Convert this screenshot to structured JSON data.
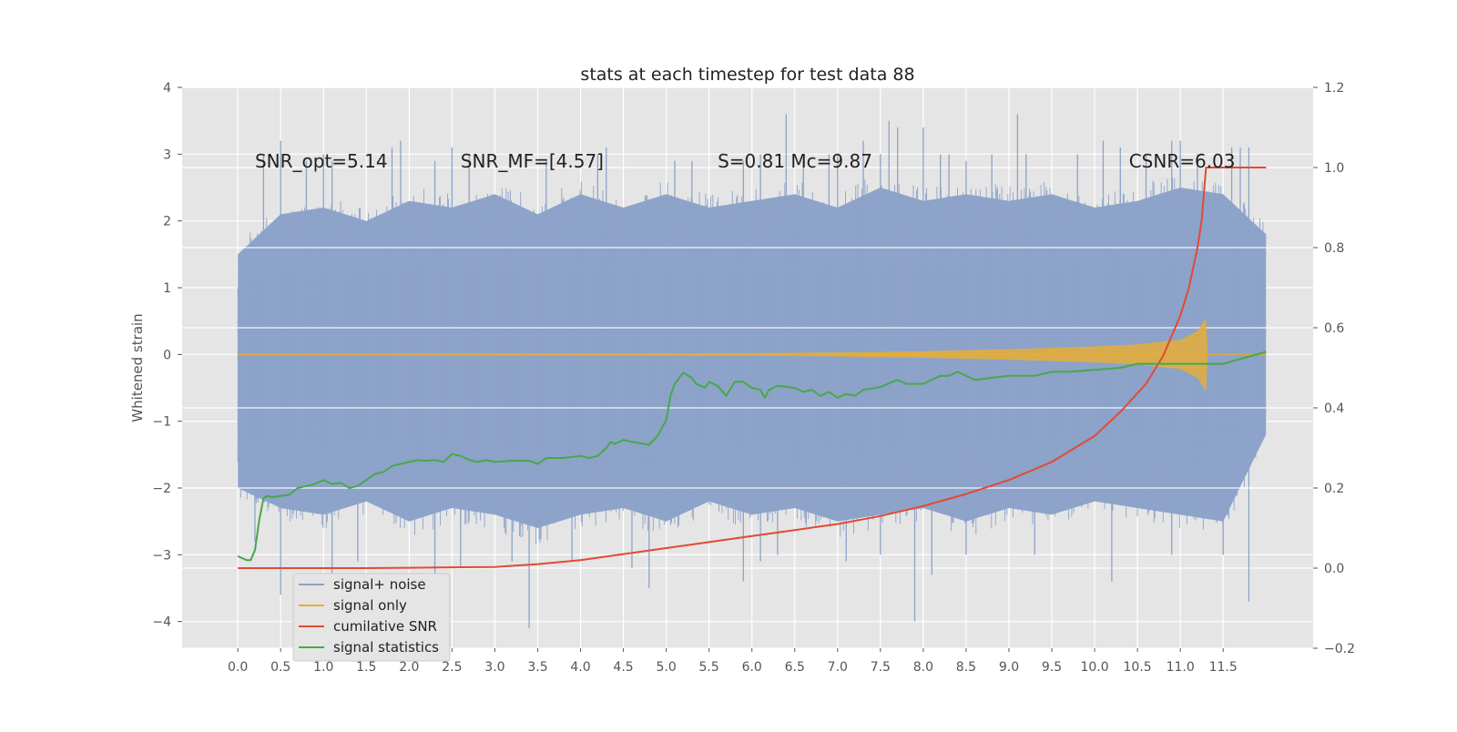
{
  "chart_data": {
    "type": "line",
    "title": "stats at each timestep for test data 88",
    "xlabel": "",
    "ylabel": "Whitened strain",
    "xlim": [
      -0.65,
      12.55
    ],
    "ylim": [
      -4.4,
      4.0
    ],
    "y2lim": [
      -0.2,
      1.2
    ],
    "x_ticks": [
      0.0,
      0.5,
      1.0,
      1.5,
      2.0,
      2.5,
      3.0,
      3.5,
      4.0,
      4.5,
      5.0,
      5.5,
      6.0,
      6.5,
      7.0,
      7.5,
      8.0,
      8.5,
      9.0,
      9.5,
      10.0,
      10.5,
      11.0,
      11.5
    ],
    "x_tick_labels": [
      "0.0",
      "0.5",
      "1.0",
      "1.5",
      "2.0",
      "2.5",
      "3.0",
      "3.5",
      "4.0",
      "4.5",
      "5.0",
      "5.5",
      "6.0",
      "6.5",
      "7.0",
      "7.5",
      "8.0",
      "8.5",
      "9.0",
      "9.5",
      "10.0",
      "10.5",
      "11.0",
      "11.5"
    ],
    "y_ticks": [
      -4,
      -3,
      -2,
      -1,
      0,
      1,
      2,
      3,
      4
    ],
    "y_tick_labels": [
      "−4",
      "−3",
      "−2",
      "−1",
      "0",
      "1",
      "2",
      "3",
      "4"
    ],
    "y2_ticks": [
      -0.2,
      0.0,
      0.2,
      0.4,
      0.6,
      0.8,
      1.0,
      1.2
    ],
    "y2_tick_labels": [
      "−0.2",
      "0.0",
      "0.2",
      "0.4",
      "0.6",
      "0.8",
      "1.0",
      "1.2"
    ],
    "grid": true,
    "legend_position": "lower-left",
    "annotations": [
      {
        "id": "snr-opt",
        "text": "SNR_opt=5.14",
        "x": 0.2,
        "y": 2.8
      },
      {
        "id": "snr-mf",
        "text": "SNR_MF=[4.57]",
        "x": 2.6,
        "y": 2.8
      },
      {
        "id": "s-mc",
        "text": "S=0.81   Mc=9.87",
        "x": 5.6,
        "y": 2.8
      },
      {
        "id": "csnr",
        "text": "CSNR=6.03",
        "x": 10.4,
        "y": 2.8
      }
    ],
    "series": [
      {
        "name": "signal+ noise",
        "axis": "left",
        "color": "#8da3c9",
        "x_range": [
          0.0,
          12.0
        ],
        "upper_envelope": [
          [
            0.0,
            1.5
          ],
          [
            0.5,
            2.1
          ],
          [
            1.0,
            2.2
          ],
          [
            1.5,
            2.0
          ],
          [
            2.0,
            2.3
          ],
          [
            2.5,
            2.2
          ],
          [
            3.0,
            2.4
          ],
          [
            3.5,
            2.1
          ],
          [
            4.0,
            2.4
          ],
          [
            4.5,
            2.2
          ],
          [
            5.0,
            2.4
          ],
          [
            5.5,
            2.2
          ],
          [
            6.0,
            2.3
          ],
          [
            6.5,
            2.4
          ],
          [
            7.0,
            2.2
          ],
          [
            7.5,
            2.5
          ],
          [
            8.0,
            2.3
          ],
          [
            8.5,
            2.4
          ],
          [
            9.0,
            2.3
          ],
          [
            9.5,
            2.4
          ],
          [
            10.0,
            2.2
          ],
          [
            10.5,
            2.3
          ],
          [
            11.0,
            2.5
          ],
          [
            11.5,
            2.4
          ],
          [
            12.0,
            1.8
          ]
        ],
        "lower_envelope": [
          [
            0.0,
            -2.0
          ],
          [
            0.5,
            -2.3
          ],
          [
            1.0,
            -2.4
          ],
          [
            1.5,
            -2.2
          ],
          [
            2.0,
            -2.5
          ],
          [
            2.5,
            -2.3
          ],
          [
            3.0,
            -2.4
          ],
          [
            3.5,
            -2.6
          ],
          [
            4.0,
            -2.4
          ],
          [
            4.5,
            -2.3
          ],
          [
            5.0,
            -2.5
          ],
          [
            5.5,
            -2.2
          ],
          [
            6.0,
            -2.4
          ],
          [
            6.5,
            -2.3
          ],
          [
            7.0,
            -2.5
          ],
          [
            7.5,
            -2.4
          ],
          [
            8.0,
            -2.3
          ],
          [
            8.5,
            -2.5
          ],
          [
            9.0,
            -2.3
          ],
          [
            9.5,
            -2.4
          ],
          [
            10.0,
            -2.2
          ],
          [
            10.5,
            -2.3
          ],
          [
            11.0,
            -2.4
          ],
          [
            11.5,
            -2.5
          ],
          [
            12.0,
            -1.2
          ]
        ],
        "spikes": [
          [
            0.3,
            3.0
          ],
          [
            0.5,
            3.2
          ],
          [
            0.8,
            2.9
          ],
          [
            1.0,
            3.0
          ],
          [
            1.1,
            2.9
          ],
          [
            1.8,
            3.1
          ],
          [
            1.9,
            3.2
          ],
          [
            2.3,
            2.9
          ],
          [
            2.5,
            3.1
          ],
          [
            2.7,
            3.0
          ],
          [
            3.6,
            2.9
          ],
          [
            4.2,
            3.0
          ],
          [
            4.3,
            3.1
          ],
          [
            5.1,
            2.9
          ],
          [
            5.3,
            2.9
          ],
          [
            5.9,
            2.9
          ],
          [
            6.1,
            3.0
          ],
          [
            6.4,
            3.6
          ],
          [
            6.6,
            2.9
          ],
          [
            6.9,
            3.0
          ],
          [
            7.0,
            3.0
          ],
          [
            7.3,
            3.2
          ],
          [
            7.5,
            3.0
          ],
          [
            7.6,
            3.5
          ],
          [
            7.7,
            3.4
          ],
          [
            8.0,
            3.4
          ],
          [
            8.2,
            3.0
          ],
          [
            8.3,
            3.0
          ],
          [
            8.5,
            2.9
          ],
          [
            8.8,
            3.0
          ],
          [
            9.1,
            3.6
          ],
          [
            9.2,
            3.0
          ],
          [
            9.8,
            3.0
          ],
          [
            10.1,
            3.2
          ],
          [
            10.3,
            3.1
          ],
          [
            10.6,
            3.0
          ],
          [
            10.9,
            3.2
          ],
          [
            11.0,
            3.2
          ],
          [
            11.2,
            3.0
          ],
          [
            11.6,
            3.1
          ],
          [
            11.7,
            3.1
          ],
          [
            11.8,
            3.1
          ],
          [
            0.2,
            -2.8
          ],
          [
            0.5,
            -3.6
          ],
          [
            1.1,
            -3.3
          ],
          [
            1.4,
            -3.1
          ],
          [
            2.3,
            -3.3
          ],
          [
            2.6,
            -3.2
          ],
          [
            3.2,
            -3.1
          ],
          [
            3.4,
            -4.1
          ],
          [
            3.9,
            -3.1
          ],
          [
            4.6,
            -3.2
          ],
          [
            4.8,
            -3.5
          ],
          [
            5.9,
            -3.4
          ],
          [
            6.1,
            -3.1
          ],
          [
            6.3,
            -3.0
          ],
          [
            7.1,
            -3.1
          ],
          [
            7.5,
            -3.0
          ],
          [
            7.9,
            -4.0
          ],
          [
            8.1,
            -3.3
          ],
          [
            8.5,
            -3.0
          ],
          [
            9.3,
            -3.0
          ],
          [
            10.2,
            -3.4
          ],
          [
            10.9,
            -3.0
          ],
          [
            11.5,
            -3.0
          ],
          [
            11.8,
            -3.7
          ],
          [
            6.0,
            1.2
          ],
          [
            6.0,
            -1.7
          ]
        ]
      },
      {
        "name": "signal only",
        "axis": "left",
        "color": "#e5ae38",
        "envelope": [
          [
            0.0,
            0.01
          ],
          [
            6.0,
            0.02
          ],
          [
            7.0,
            0.03
          ],
          [
            8.0,
            0.05
          ],
          [
            9.0,
            0.08
          ],
          [
            10.0,
            0.12
          ],
          [
            10.5,
            0.15
          ],
          [
            11.0,
            0.22
          ],
          [
            11.2,
            0.35
          ],
          [
            11.3,
            0.55
          ],
          [
            11.32,
            0.0
          ]
        ],
        "baseline": [
          [
            11.32,
            0.0
          ],
          [
            12.0,
            0.0
          ]
        ]
      },
      {
        "name": "cumilative SNR",
        "axis": "right",
        "color": "#e24a33",
        "points": [
          [
            0.0,
            0.0
          ],
          [
            0.5,
            0.0
          ],
          [
            1.0,
            0.0
          ],
          [
            1.5,
            0.0
          ],
          [
            2.0,
            0.001
          ],
          [
            2.5,
            0.002
          ],
          [
            3.0,
            0.003
          ],
          [
            3.5,
            0.01
          ],
          [
            4.0,
            0.02
          ],
          [
            4.5,
            0.035
          ],
          [
            5.0,
            0.05
          ],
          [
            5.5,
            0.065
          ],
          [
            6.0,
            0.08
          ],
          [
            6.5,
            0.095
          ],
          [
            7.0,
            0.11
          ],
          [
            7.5,
            0.13
          ],
          [
            8.0,
            0.155
          ],
          [
            8.5,
            0.185
          ],
          [
            9.0,
            0.22
          ],
          [
            9.5,
            0.265
          ],
          [
            10.0,
            0.33
          ],
          [
            10.3,
            0.39
          ],
          [
            10.6,
            0.46
          ],
          [
            10.8,
            0.53
          ],
          [
            11.0,
            0.63
          ],
          [
            11.1,
            0.7
          ],
          [
            11.2,
            0.8
          ],
          [
            11.25,
            0.87
          ],
          [
            11.3,
            1.0
          ],
          [
            12.0,
            1.0
          ]
        ]
      },
      {
        "name": "signal statistics",
        "axis": "right",
        "color": "#48a84a",
        "points": [
          [
            0.0,
            0.03
          ],
          [
            0.05,
            0.025
          ],
          [
            0.1,
            0.02
          ],
          [
            0.15,
            0.02
          ],
          [
            0.2,
            0.045
          ],
          [
            0.25,
            0.12
          ],
          [
            0.3,
            0.175
          ],
          [
            0.35,
            0.18
          ],
          [
            0.4,
            0.177
          ],
          [
            0.5,
            0.18
          ],
          [
            0.6,
            0.183
          ],
          [
            0.7,
            0.2
          ],
          [
            0.8,
            0.205
          ],
          [
            0.9,
            0.21
          ],
          [
            1.0,
            0.22
          ],
          [
            1.1,
            0.21
          ],
          [
            1.2,
            0.213
          ],
          [
            1.3,
            0.2
          ],
          [
            1.4,
            0.205
          ],
          [
            1.5,
            0.22
          ],
          [
            1.6,
            0.235
          ],
          [
            1.7,
            0.24
          ],
          [
            1.8,
            0.255
          ],
          [
            1.9,
            0.26
          ],
          [
            2.0,
            0.265
          ],
          [
            2.1,
            0.27
          ],
          [
            2.2,
            0.268
          ],
          [
            2.3,
            0.27
          ],
          [
            2.4,
            0.265
          ],
          [
            2.5,
            0.285
          ],
          [
            2.6,
            0.28
          ],
          [
            2.7,
            0.27
          ],
          [
            2.8,
            0.265
          ],
          [
            2.9,
            0.27
          ],
          [
            3.0,
            0.265
          ],
          [
            3.2,
            0.268
          ],
          [
            3.4,
            0.268
          ],
          [
            3.5,
            0.26
          ],
          [
            3.6,
            0.275
          ],
          [
            3.8,
            0.275
          ],
          [
            4.0,
            0.28
          ],
          [
            4.1,
            0.275
          ],
          [
            4.2,
            0.28
          ],
          [
            4.3,
            0.3
          ],
          [
            4.35,
            0.315
          ],
          [
            4.4,
            0.31
          ],
          [
            4.5,
            0.32
          ],
          [
            4.6,
            0.315
          ],
          [
            4.8,
            0.308
          ],
          [
            4.9,
            0.33
          ],
          [
            5.0,
            0.37
          ],
          [
            5.05,
            0.43
          ],
          [
            5.1,
            0.46
          ],
          [
            5.2,
            0.488
          ],
          [
            5.3,
            0.475
          ],
          [
            5.35,
            0.46
          ],
          [
            5.45,
            0.45
          ],
          [
            5.5,
            0.465
          ],
          [
            5.6,
            0.455
          ],
          [
            5.7,
            0.43
          ],
          [
            5.8,
            0.465
          ],
          [
            5.9,
            0.465
          ],
          [
            6.0,
            0.45
          ],
          [
            6.1,
            0.445
          ],
          [
            6.15,
            0.425
          ],
          [
            6.2,
            0.445
          ],
          [
            6.3,
            0.455
          ],
          [
            6.5,
            0.45
          ],
          [
            6.6,
            0.44
          ],
          [
            6.7,
            0.445
          ],
          [
            6.8,
            0.43
          ],
          [
            6.9,
            0.44
          ],
          [
            7.0,
            0.425
          ],
          [
            7.1,
            0.435
          ],
          [
            7.2,
            0.43
          ],
          [
            7.3,
            0.445
          ],
          [
            7.5,
            0.452
          ],
          [
            7.7,
            0.47
          ],
          [
            7.8,
            0.46
          ],
          [
            8.0,
            0.46
          ],
          [
            8.1,
            0.47
          ],
          [
            8.2,
            0.48
          ],
          [
            8.3,
            0.48
          ],
          [
            8.4,
            0.49
          ],
          [
            8.5,
            0.48
          ],
          [
            8.6,
            0.47
          ],
          [
            8.8,
            0.475
          ],
          [
            9.0,
            0.48
          ],
          [
            9.3,
            0.48
          ],
          [
            9.5,
            0.49
          ],
          [
            9.7,
            0.49
          ],
          [
            10.0,
            0.495
          ],
          [
            10.3,
            0.5
          ],
          [
            10.5,
            0.51
          ],
          [
            11.0,
            0.51
          ],
          [
            11.5,
            0.51
          ],
          [
            12.0,
            0.54
          ]
        ]
      }
    ]
  }
}
